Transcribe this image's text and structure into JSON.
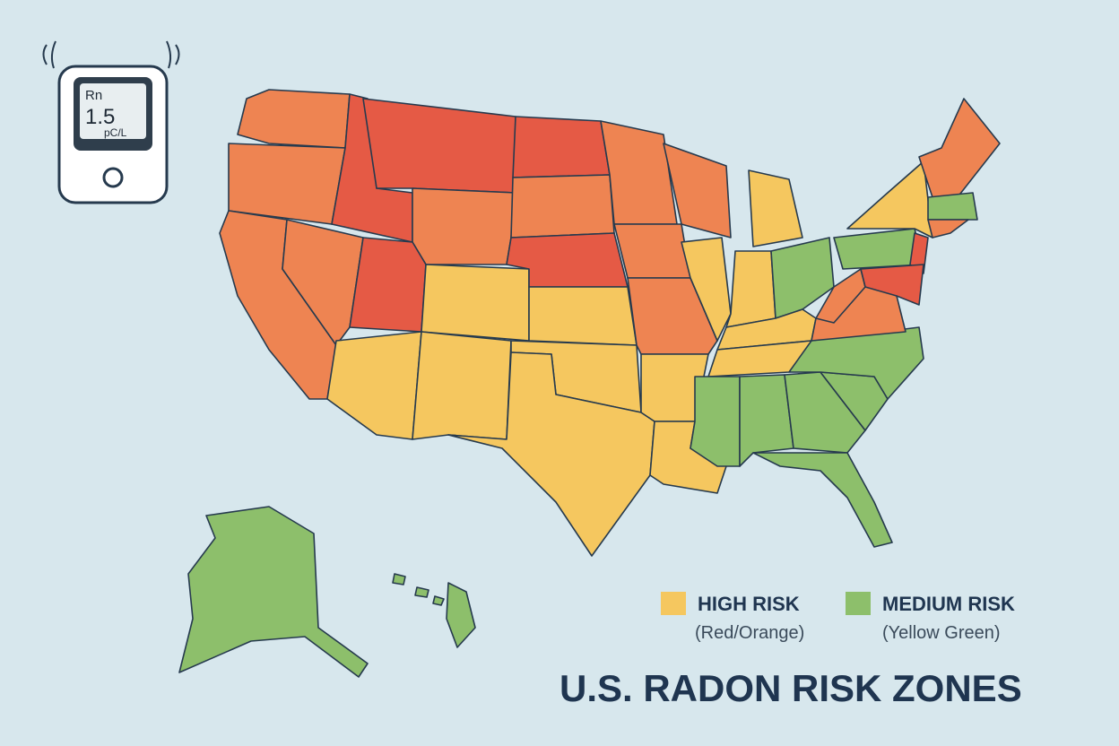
{
  "device": {
    "label": "Rn",
    "reading": "1.5",
    "unit": "pC/L"
  },
  "legend": [
    {
      "label": "HIGH RISK",
      "note": "(Red/Orange)"
    },
    {
      "label": "MEDIUM RISK",
      "note": "(Yellow Green)"
    }
  ],
  "title": "U.S. RADON RISK ZONES"
}
